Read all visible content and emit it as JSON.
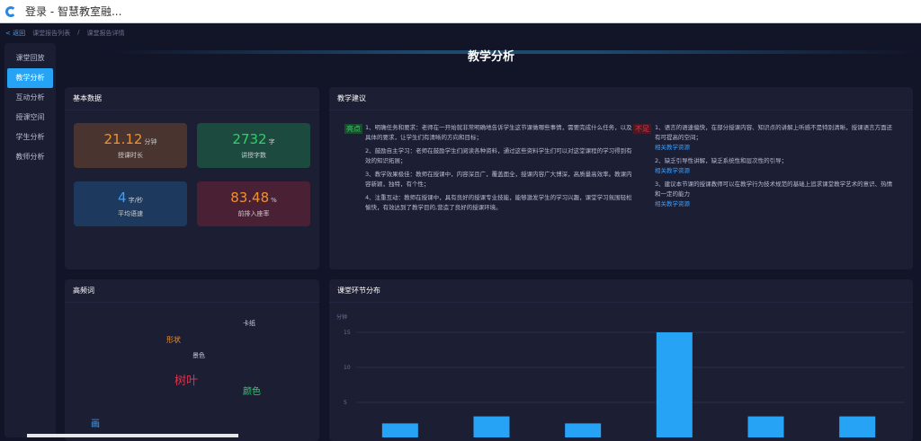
{
  "window": {
    "title": "登录 - 智慧教室融..."
  },
  "breadcrumb": {
    "back": "< 返回",
    "items": [
      "课堂报告列表",
      "/",
      "课堂报告详情"
    ]
  },
  "sidebar": {
    "items": [
      {
        "label": "课堂回放"
      },
      {
        "label": "教学分析",
        "active": true
      },
      {
        "label": "互动分析"
      },
      {
        "label": "授课空间"
      },
      {
        "label": "学生分析"
      },
      {
        "label": "教师分析"
      }
    ]
  },
  "header": {
    "title": "教学分析"
  },
  "basic": {
    "title": "基本数据",
    "cards": [
      {
        "value": "21.12",
        "unit": "分钟",
        "label": "授课时长",
        "color": "#f0922a",
        "bg": "#4a3430"
      },
      {
        "value": "2732",
        "unit": "字",
        "label": "讲授字数",
        "color": "#2fd068",
        "bg": "#1d4a3e"
      },
      {
        "value": "4",
        "unit": "字/秒",
        "label": "平均语速",
        "color": "#3aa0ff",
        "bg": "#1d3a5e"
      },
      {
        "value": "83.48",
        "unit": "%",
        "label": "前排入座率",
        "color": "#f0922a",
        "bg": "#4a2034"
      }
    ]
  },
  "suggest": {
    "title": "教学建议",
    "pros_tag": "亮点",
    "cons_tag": "不足",
    "pros": [
      "1、明确任务和要求：老师在一开始就非常明确地告诉学生这节课做哪些事情，需要完成什么任务，以及具体的要求，让学生们有清晰的方向和目标；",
      "2、鼓励自主学习：老师在鼓励学生们阅读各种资料，通过这些资料学生们可以对这堂课程的学习得到有效的知识拓展；",
      "3、教学效果极佳：教师在授课中，内容深且广，覆盖面全，授课内容广大博深，高质量高效率。教课内容新颖，独特，有个性；",
      "4、注重互动：教师在授课中，具有良好的授课专业技能，能够激发学生的学习兴趣，课堂学习氛围轻松愉快，有效达到了教学目的,营造了良好的授课环境。"
    ],
    "cons": [
      "1、语言的语速偏快，在部分授课内容、知识点的讲解上听感不是特别清晰，授课语言方面还有可提高的空间；",
      "2、缺乏引导性讲解，缺乏系统性和层次性的引导；",
      "3、建议本节课的授课教师可以在教学行为技术规范的基础上追求课堂教学艺术的意识、热情和一定的能力"
    ],
    "link": "相关教学资源"
  },
  "words": {
    "title": "高频词",
    "items": [
      {
        "text": "卡纸",
        "color": "#c8ccdc"
      },
      {
        "text": "形状",
        "color": "#f0922a"
      },
      {
        "text": "景色",
        "color": "#c8ccdc"
      },
      {
        "text": "树叶",
        "color": "#e0304a"
      },
      {
        "text": "颜色",
        "color": "#2fd068"
      },
      {
        "text": "画",
        "color": "#3aa0ff"
      }
    ]
  },
  "chart_data": {
    "type": "bar",
    "title": "课堂环节分布",
    "ylabel": "分钟",
    "yticks": [
      5,
      10,
      15
    ],
    "ylim": [
      0,
      17
    ],
    "values": [
      2,
      3,
      2,
      15,
      3,
      3
    ],
    "color": "#27a3f5",
    "grid": true
  }
}
